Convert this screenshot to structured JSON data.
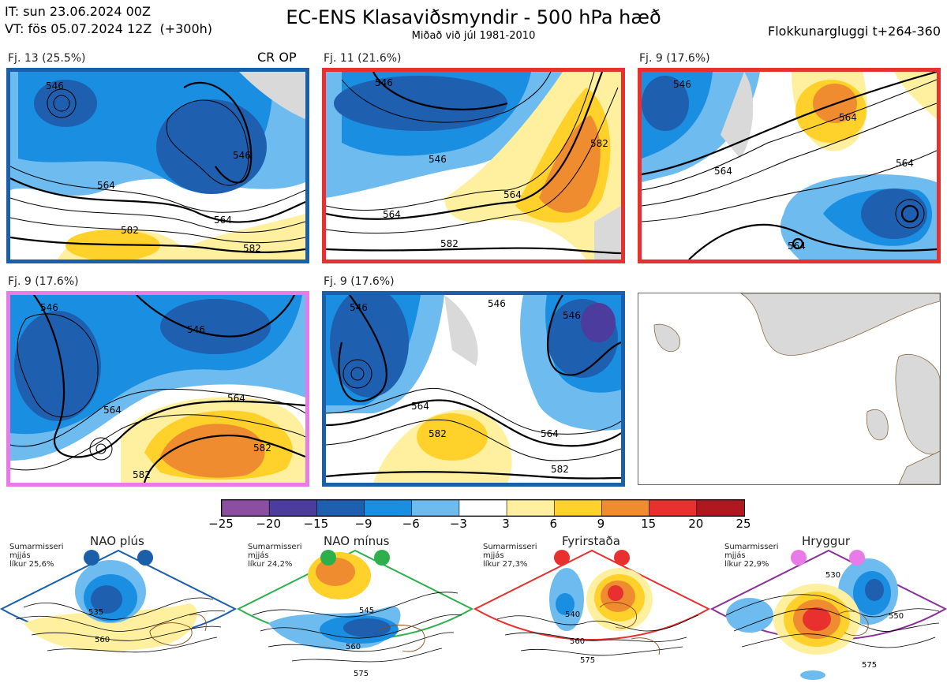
{
  "header": {
    "init_time": "IT: sun 23.06.2024 00Z",
    "valid_time": "VT: fös 05.07.2024 12Z  (+300h)",
    "title": "EC-ENS Klasaviðsmyndir - 500 hPa hæð",
    "subtitle": "Miðað við júl 1981-2010",
    "window": "Flokkunargluggi t+264-360"
  },
  "panels": [
    {
      "label": "Fj. 13 (25.5%)",
      "extra": "CR OP",
      "border_color": "#1a5fa8",
      "contours": [
        "546",
        "546",
        "564",
        "564",
        "582",
        "582"
      ]
    },
    {
      "label": "Fj. 11 (21.6%)",
      "border_color": "#e8302f",
      "contours": [
        "546",
        "546",
        "564",
        "564",
        "582",
        "582"
      ]
    },
    {
      "label": "Fj. 9 (17.6%)",
      "border_color": "#e8302f",
      "contours": [
        "546",
        "564",
        "564",
        "564",
        "564"
      ]
    },
    {
      "label": "Fj. 9 (17.6%)",
      "border_color": "#e87be8",
      "contours": [
        "546",
        "546",
        "564",
        "564",
        "582",
        "582"
      ]
    },
    {
      "label": "Fj. 9 (17.6%)",
      "border_color": "#1a5fa8",
      "contours": [
        "546",
        "546",
        "546",
        "564",
        "564",
        "582",
        "582"
      ]
    }
  ],
  "colorbar": {
    "ticks": [
      "−25",
      "−20",
      "−15",
      "−9",
      "−6",
      "−3",
      "3",
      "6",
      "9",
      "15",
      "20",
      "25"
    ],
    "colors": [
      "#8b4ea0",
      "#4b3c9e",
      "#1f5fb0",
      "#1a8ee0",
      "#6dbbef",
      "#ffffff",
      "#fff0a0",
      "#ffd12a",
      "#f08c30",
      "#e8302f",
      "#b01820"
    ]
  },
  "regimes": [
    {
      "title": "NAO plús",
      "season": "Sumarmisseri",
      "mean": "mjjás",
      "prob": "líkur 25,6%",
      "dot_color": "#1a5fa8",
      "border_color": "#1a5fa8",
      "contours": [
        "535",
        "560"
      ]
    },
    {
      "title": "NAO mínus",
      "season": "Sumarmisseri",
      "mean": "mjjás",
      "prob": "líkur 24,2%",
      "dot_color": "#2db04b",
      "border_color": "#2db04b",
      "contours": [
        "545",
        "560",
        "575"
      ]
    },
    {
      "title": "Fyrirstaða",
      "season": "Sumarmisseri",
      "mean": "mjjás",
      "prob": "líkur 27,3%",
      "dot_color": "#e8302f",
      "border_color": "#e8302f",
      "contours": [
        "540",
        "560",
        "575"
      ]
    },
    {
      "title": "Hryggur",
      "season": "Sumarmisseri",
      "mean": "mjjás",
      "prob": "líkur 22,9%",
      "dot_color": "#e87be8",
      "border_color": "#8b2f9a",
      "contours": [
        "530",
        "550",
        "575"
      ]
    }
  ]
}
